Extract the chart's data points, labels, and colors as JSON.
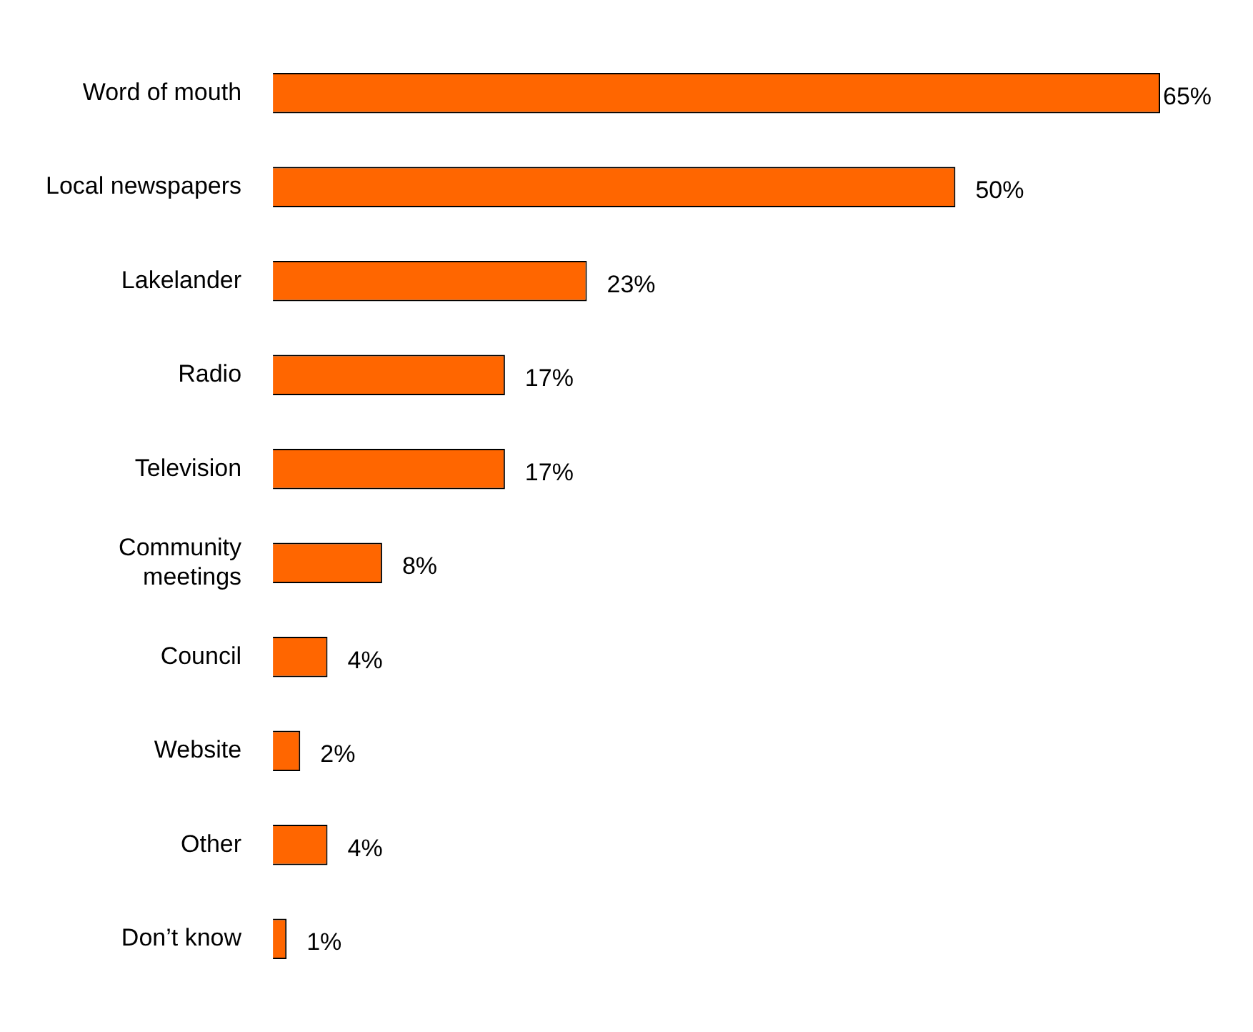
{
  "chart_data": {
    "type": "bar",
    "orientation": "horizontal",
    "categories": [
      "Word of mouth",
      "Local newspapers",
      "Lakelander",
      "Radio",
      "Television",
      "Community meetings",
      "Council",
      "Website",
      "Other",
      "Don’t know"
    ],
    "values": [
      65,
      50,
      23,
      17,
      17,
      8,
      4,
      2,
      4,
      1
    ],
    "value_labels": [
      "65%",
      "50%",
      "23%",
      "17%",
      "17%",
      "8%",
      "4%",
      "2%",
      "4%",
      "1%"
    ],
    "color": "#ff6600",
    "xlim": [
      0,
      65
    ],
    "tick_labels": "y",
    "legend": false
  }
}
